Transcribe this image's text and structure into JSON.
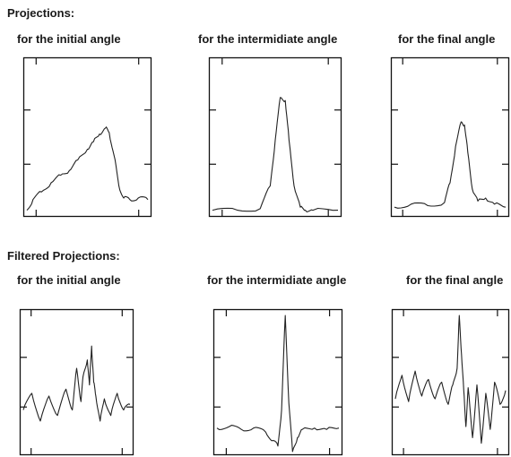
{
  "headings": {
    "projections": "Projections:",
    "filtered": "Filtered Projections:"
  },
  "colors": {
    "trace": "#222222",
    "frame": "#111111"
  },
  "chart_data": [
    {
      "type": "line",
      "group": "Projections",
      "caption": "for the initial angle",
      "ylim": [
        0,
        1
      ],
      "series": [
        {
          "x": [
            0,
            0.05,
            0.12,
            0.2,
            0.28,
            0.35,
            0.42,
            0.5,
            0.55,
            0.6,
            0.65,
            0.68,
            0.72,
            0.76,
            0.8,
            0.85,
            0.92,
            1
          ],
          "values": [
            0.02,
            0.09,
            0.14,
            0.2,
            0.25,
            0.28,
            0.35,
            0.42,
            0.47,
            0.52,
            0.56,
            0.53,
            0.38,
            0.18,
            0.1,
            0.09,
            0.1,
            0.09
          ]
        }
      ]
    },
    {
      "type": "line",
      "group": "Projections",
      "caption": "for the intermidiate angle",
      "ylim": [
        0,
        1
      ],
      "series": [
        {
          "x": [
            0,
            0.2,
            0.38,
            0.46,
            0.5,
            0.54,
            0.58,
            0.61,
            0.65,
            0.7,
            0.74,
            0.8,
            1
          ],
          "values": [
            0.02,
            0.02,
            0.03,
            0.18,
            0.48,
            0.76,
            0.74,
            0.48,
            0.18,
            0.04,
            0.02,
            0.02,
            0.02
          ]
        }
      ]
    },
    {
      "type": "line",
      "group": "Projections",
      "caption": "for the final angle",
      "ylim": [
        0,
        1
      ],
      "series": [
        {
          "x": [
            0,
            0.15,
            0.3,
            0.45,
            0.5,
            0.55,
            0.6,
            0.63,
            0.66,
            0.7,
            0.75,
            0.82,
            0.9,
            1
          ],
          "values": [
            0.04,
            0.06,
            0.05,
            0.07,
            0.2,
            0.44,
            0.6,
            0.58,
            0.4,
            0.16,
            0.08,
            0.1,
            0.06,
            0.04
          ]
        }
      ]
    },
    {
      "type": "line",
      "group": "Filtered Projections",
      "caption": "for the initial angle",
      "ylim": [
        0,
        1
      ],
      "series": [
        {
          "x": [
            0,
            0.08,
            0.16,
            0.24,
            0.32,
            0.4,
            0.46,
            0.5,
            0.54,
            0.56,
            0.6,
            0.62,
            0.64,
            0.66,
            0.68,
            0.72,
            0.76,
            0.82,
            0.88,
            0.94,
            1
          ],
          "values": [
            0.3,
            0.42,
            0.22,
            0.4,
            0.26,
            0.45,
            0.3,
            0.6,
            0.36,
            0.54,
            0.66,
            0.48,
            0.76,
            0.5,
            0.4,
            0.22,
            0.38,
            0.26,
            0.42,
            0.3,
            0.34
          ]
        }
      ]
    },
    {
      "type": "line",
      "group": "Filtered Projections",
      "caption": "for the intermidiate angle",
      "ylim": [
        0,
        1
      ],
      "series": [
        {
          "x": [
            0,
            0.1,
            0.2,
            0.3,
            0.4,
            0.46,
            0.5,
            0.53,
            0.56,
            0.59,
            0.62,
            0.66,
            0.7,
            0.8,
            0.9,
            1
          ],
          "values": [
            0.17,
            0.18,
            0.16,
            0.17,
            0.14,
            0.08,
            0.04,
            0.3,
            0.98,
            0.35,
            0.0,
            0.1,
            0.16,
            0.17,
            0.16,
            0.17
          ]
        }
      ]
    },
    {
      "type": "line",
      "group": "Filtered Projections",
      "caption": "for the final angle",
      "ylim": [
        0,
        1
      ],
      "series": [
        {
          "x": [
            0,
            0.06,
            0.12,
            0.18,
            0.24,
            0.3,
            0.36,
            0.42,
            0.48,
            0.52,
            0.56,
            0.58,
            0.6,
            0.62,
            0.64,
            0.66,
            0.7,
            0.74,
            0.78,
            0.82,
            0.86,
            0.9,
            0.95,
            1
          ],
          "values": [
            0.38,
            0.55,
            0.36,
            0.58,
            0.4,
            0.52,
            0.38,
            0.5,
            0.34,
            0.48,
            0.6,
            0.98,
            0.7,
            0.44,
            0.18,
            0.46,
            0.1,
            0.48,
            0.06,
            0.42,
            0.16,
            0.5,
            0.34,
            0.44
          ]
        }
      ]
    }
  ]
}
